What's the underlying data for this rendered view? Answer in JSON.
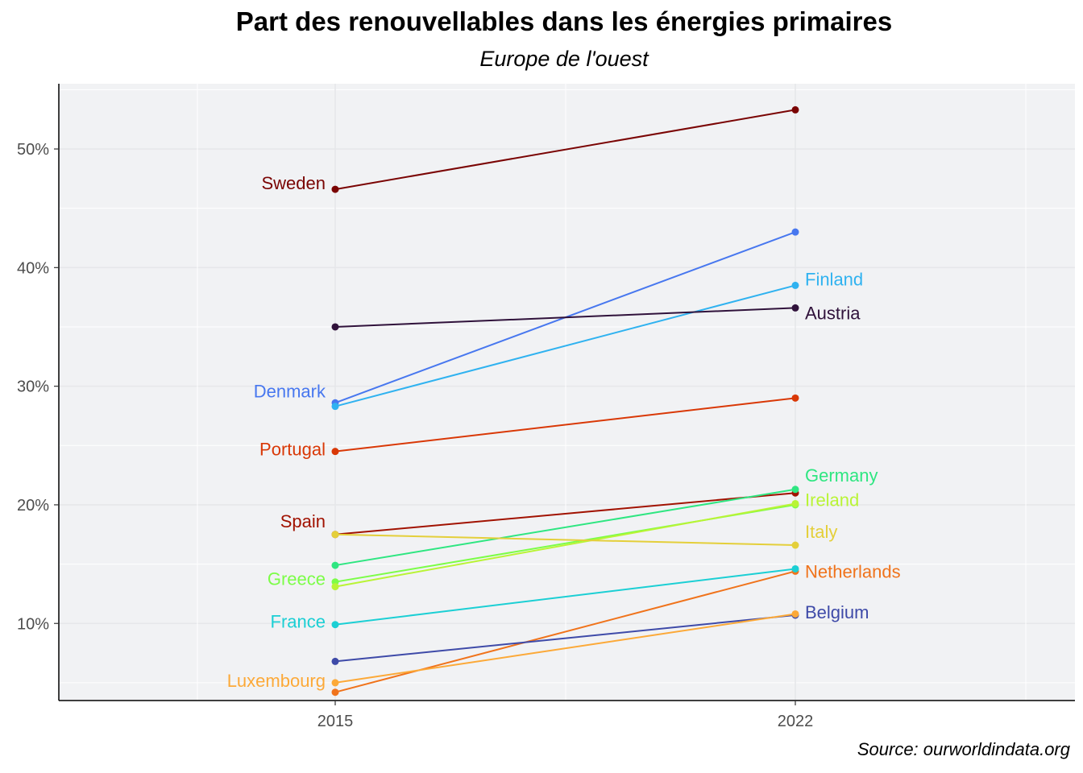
{
  "chart_data": {
    "type": "line",
    "title": "Part des renouvellables dans les énergies primaires",
    "subtitle": "Europe de l'ouest",
    "source": "Source: ourworldindata.org",
    "x": [
      "2015",
      "2022"
    ],
    "ylim": [
      3.5,
      55.5
    ],
    "yticks": [
      10,
      20,
      30,
      40,
      50
    ],
    "ytick_labels": [
      "10%",
      "20%",
      "30%",
      "40%",
      "50%"
    ],
    "grid": true,
    "series": [
      {
        "name": "Sweden",
        "values": [
          46.6,
          53.3
        ],
        "color": "#7a0403",
        "label_at": "start"
      },
      {
        "name": "Denmark",
        "values": [
          28.6,
          43.0
        ],
        "color": "#4777ef",
        "label_at": "start"
      },
      {
        "name": "Finland",
        "values": [
          28.3,
          38.5
        ],
        "color": "#2fb2f0",
        "label_at": "end"
      },
      {
        "name": "Austria",
        "values": [
          35.0,
          36.6
        ],
        "color": "#30123b",
        "label_at": "end"
      },
      {
        "name": "Portugal",
        "values": [
          24.5,
          29.0
        ],
        "color": "#d93806",
        "label_at": "start"
      },
      {
        "name": "Spain",
        "values": [
          17.5,
          21.0
        ],
        "color": "#a11201",
        "label_at": "start"
      },
      {
        "name": "Germany",
        "values": [
          14.9,
          21.3
        ],
        "color": "#2ee681",
        "label_at": "end"
      },
      {
        "name": "Greece",
        "values": [
          13.5,
          20.0
        ],
        "color": "#7cfd47",
        "label_at": "start"
      },
      {
        "name": "Ireland",
        "values": [
          13.1,
          20.1
        ],
        "color": "#b9f435",
        "label_at": "end"
      },
      {
        "name": "Italy",
        "values": [
          17.5,
          16.6
        ],
        "color": "#e4cf3a",
        "label_at": "end"
      },
      {
        "name": "Netherlands",
        "values": [
          4.2,
          14.4
        ],
        "color": "#f0731b",
        "label_at": "end"
      },
      {
        "name": "France",
        "values": [
          9.9,
          14.6
        ],
        "color": "#1bcfd4",
        "label_at": "start"
      },
      {
        "name": "Belgium",
        "values": [
          6.8,
          10.7
        ],
        "color": "#3e4aa8",
        "label_at": "end"
      },
      {
        "name": "Luxembourg",
        "values": [
          5.0,
          10.8
        ],
        "color": "#fca938",
        "label_at": "start"
      }
    ]
  }
}
